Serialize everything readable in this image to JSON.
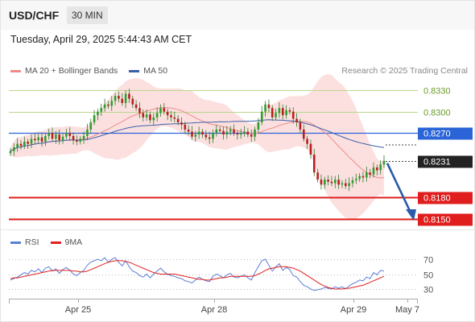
{
  "header": {
    "symbol": "USD/CHF",
    "timeframe": "30 MIN"
  },
  "datetime": "Tuesday, April 29, 2025 5:44:43 AM CET",
  "legend": {
    "ma20_label": "MA 20 + Bollinger Bands",
    "ma20_color": "#f08a8a",
    "ma50_label": "MA 50",
    "ma50_color": "#3b5fa8"
  },
  "credit": "Research © 2025 Trading Central",
  "rsi_legend": {
    "rsi_label": "RSI",
    "rsi_color": "#5b7fd6",
    "ma9_label": "9MA",
    "ma9_color": "#e02020"
  },
  "chart_data": {
    "type": "candlestick",
    "y_range": [
      0.813,
      0.835
    ],
    "x_labels": [
      "Apr 25",
      "Apr 28",
      "Apr 29",
      "May 7"
    ],
    "levels": [
      {
        "label": "0.8330",
        "value": 0.833,
        "kind": "resistance",
        "color": "#b9d88a"
      },
      {
        "label": "0.8300",
        "value": 0.83,
        "kind": "resistance",
        "color": "#b9d88a"
      },
      {
        "label": "0.8270",
        "value": 0.827,
        "kind": "pivot",
        "color": "#2a64d6"
      },
      {
        "label": "0.8231",
        "value": 0.8231,
        "kind": "last",
        "color": "#222222"
      },
      {
        "label": "0.8180",
        "value": 0.818,
        "kind": "support",
        "color": "#e01e1e"
      },
      {
        "label": "0.8150",
        "value": 0.815,
        "kind": "support",
        "color": "#e01e1e"
      }
    ],
    "closes": [
      0.8245,
      0.825,
      0.8255,
      0.8252,
      0.8258,
      0.8255,
      0.8262,
      0.826,
      0.8264,
      0.8258,
      0.8266,
      0.827,
      0.8262,
      0.8268,
      0.826,
      0.8265,
      0.827,
      0.8266,
      0.826,
      0.8258,
      0.8262,
      0.8266,
      0.8275,
      0.8285,
      0.8295,
      0.83,
      0.8305,
      0.831,
      0.8308,
      0.8315,
      0.8322,
      0.8318,
      0.8312,
      0.8325,
      0.8318,
      0.831,
      0.8305,
      0.8298,
      0.8292,
      0.8296,
      0.8288,
      0.8292,
      0.8298,
      0.8305,
      0.83,
      0.8295,
      0.8292,
      0.829,
      0.8285,
      0.8282,
      0.8275,
      0.8272,
      0.8265,
      0.8268,
      0.8272,
      0.8268,
      0.8264,
      0.8262,
      0.827,
      0.8275,
      0.8273,
      0.8268,
      0.8272,
      0.8275,
      0.827,
      0.8268,
      0.827,
      0.8272,
      0.8268,
      0.8265,
      0.8275,
      0.8285,
      0.83,
      0.831,
      0.8305,
      0.8292,
      0.8298,
      0.8305,
      0.8295,
      0.8302,
      0.83,
      0.829,
      0.8285,
      0.8275,
      0.8262,
      0.8255,
      0.824,
      0.8215,
      0.8205,
      0.8198,
      0.8205,
      0.8202,
      0.82,
      0.8205,
      0.8198,
      0.82,
      0.8196,
      0.82,
      0.8204,
      0.8206,
      0.821,
      0.8208,
      0.8215,
      0.8212,
      0.8222,
      0.8218,
      0.8226,
      0.8231
    ],
    "projection": {
      "from": 0.8228,
      "to": 0.815
    },
    "rsi": {
      "ticks": [
        30,
        50,
        70
      ],
      "range": [
        20,
        80
      ],
      "rsi_values": [
        42,
        44,
        46,
        49,
        52,
        50,
        55,
        53,
        57,
        52,
        58,
        60,
        54,
        57,
        51,
        56,
        59,
        55,
        50,
        48,
        52,
        55,
        62,
        66,
        68,
        70,
        68,
        72,
        66,
        70,
        72,
        66,
        61,
        68,
        60,
        54,
        52,
        48,
        46,
        50,
        45,
        50,
        54,
        58,
        53,
        50,
        48,
        47,
        45,
        44,
        41,
        40,
        38,
        42,
        46,
        43,
        41,
        40,
        47,
        50,
        48,
        45,
        49,
        51,
        46,
        45,
        47,
        49,
        45,
        42,
        52,
        60,
        68,
        70,
        62,
        54,
        60,
        64,
        55,
        59,
        56,
        48,
        46,
        40,
        35,
        33,
        30,
        28,
        29,
        30,
        32,
        31,
        30,
        33,
        31,
        33,
        30,
        34,
        37,
        39,
        42,
        41,
        46,
        44,
        52,
        49,
        55,
        54
      ],
      "ma9_values": [
        44,
        45,
        45,
        46,
        47,
        48,
        49,
        50,
        51,
        52,
        53,
        54,
        55,
        55,
        55,
        55,
        55,
        55,
        54,
        54,
        53,
        53,
        54,
        56,
        58,
        60,
        62,
        64,
        66,
        67,
        68,
        68,
        68,
        67,
        66,
        64,
        62,
        60,
        58,
        56,
        54,
        52,
        51,
        50,
        50,
        50,
        50,
        50,
        49,
        48,
        47,
        46,
        45,
        44,
        43,
        43,
        42,
        42,
        43,
        44,
        45,
        45,
        46,
        47,
        47,
        47,
        47,
        47,
        47,
        47,
        48,
        50,
        52,
        55,
        57,
        58,
        59,
        60,
        60,
        60,
        59,
        58,
        56,
        54,
        51,
        48,
        45,
        42,
        39,
        36,
        34,
        32,
        31,
        30,
        30,
        30,
        31,
        31,
        32,
        33,
        34,
        35,
        37,
        39,
        41,
        43,
        45,
        47
      ]
    }
  }
}
